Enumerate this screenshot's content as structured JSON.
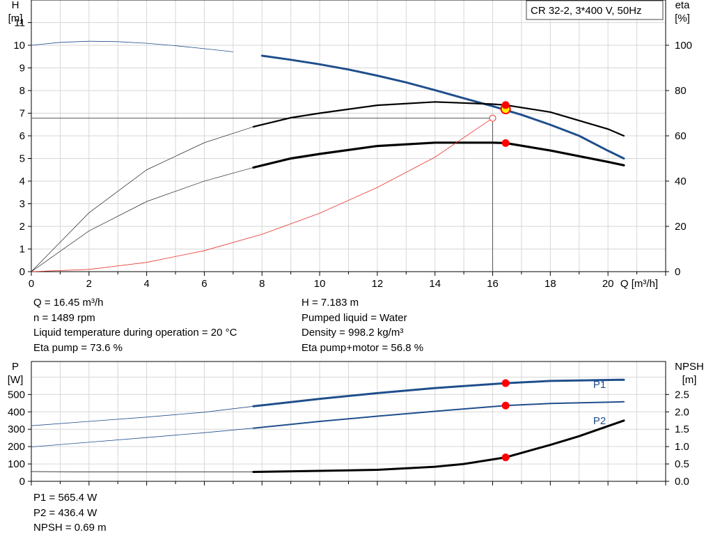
{
  "legend_title": "CR 32-2, 3*400 V, 50Hz",
  "colors": {
    "head": "#1f4e8c",
    "power": "#1f4e8c",
    "eta": "#000000",
    "npsh": "#000000",
    "system": "#e8332a",
    "marker": "#ff0000",
    "duty_fill": "#ffee00",
    "grid": "#d6d6d6"
  },
  "info_top_left": [
    "Q = 16.45 m³/h",
    "n = 1489 rpm",
    "Liquid temperature during operation = 20 °C",
    "Eta pump = 73.6 %"
  ],
  "info_top_right": [
    "H = 7.183 m",
    "Pumped liquid = Water",
    "Density = 998.2 kg/m³",
    "Eta pump+motor = 56.8 %"
  ],
  "info_bottom": [
    "P1 = 565.4 W",
    "P2 = 436.4 W",
    "NPSH = 0.69 m"
  ],
  "chart_data": [
    {
      "type": "line",
      "xlabel": "Q [m³/h]",
      "ylabel_left": [
        "H",
        "[m]"
      ],
      "ylabel_right": [
        "eta",
        "[%]"
      ],
      "xlim": [
        0,
        22
      ],
      "ylim": [
        0,
        12
      ],
      "ylim_right": [
        0,
        120
      ],
      "x_ticks": [
        0,
        2,
        4,
        6,
        8,
        10,
        12,
        14,
        16,
        18,
        20
      ],
      "y_ticks": [
        0,
        1,
        2,
        3,
        4,
        5,
        6,
        7,
        8,
        9,
        10,
        11
      ],
      "y_ticks_right": [
        0,
        20,
        40,
        60,
        80,
        100
      ],
      "grid": true,
      "duty_point": {
        "q": 16.45,
        "h": 7.183
      },
      "series": [
        {
          "key": "head",
          "axis": "left",
          "thin_until": 7.7,
          "x": [
            0,
            1,
            2,
            3,
            4,
            5,
            6,
            7,
            8,
            9,
            10,
            11,
            12,
            13,
            14,
            15,
            16,
            17,
            18,
            19,
            20,
            20.55
          ],
          "y": [
            10.0,
            10.13,
            10.18,
            10.16,
            10.09,
            9.98,
            9.85,
            9.71,
            9.54,
            9.36,
            9.16,
            8.93,
            8.66,
            8.36,
            8.02,
            7.66,
            7.31,
            6.93,
            6.49,
            6.0,
            5.34,
            5.0
          ]
        },
        {
          "key": "eta1",
          "axis": "right",
          "thin_until": 7.7,
          "x": [
            0,
            2,
            4,
            6,
            7.7,
            9,
            10,
            12,
            14,
            16,
            16.45,
            18,
            20,
            20.55
          ],
          "y": [
            0,
            26,
            45,
            57,
            64,
            68,
            70,
            73.5,
            75,
            74,
            73.6,
            70.5,
            63,
            60
          ]
        },
        {
          "key": "eta2",
          "axis": "right",
          "thin_until": 7.7,
          "x": [
            0,
            2,
            4,
            6,
            7.7,
            9,
            10,
            12,
            14,
            16,
            16.45,
            18,
            20,
            20.55
          ],
          "y": [
            0,
            18,
            31,
            40,
            46,
            50,
            52,
            55.5,
            57,
            57,
            56.8,
            53.5,
            48.5,
            47
          ]
        },
        {
          "key": "system",
          "axis": "left",
          "x": [
            0,
            2,
            4,
            6,
            8,
            10,
            12,
            14,
            16.0
          ],
          "y": [
            0,
            0.1,
            0.41,
            0.93,
            1.65,
            2.58,
            3.72,
            5.06,
            6.78
          ]
        }
      ],
      "markers": [
        {
          "x": 16.45,
          "y": 7.183,
          "axis": "left"
        },
        {
          "x": 16.45,
          "y": 73.6,
          "axis": "right"
        },
        {
          "x": 16.45,
          "y": 56.8,
          "axis": "right"
        }
      ]
    },
    {
      "type": "line",
      "ylabel_left": [
        "P",
        "[W]"
      ],
      "ylabel_right": [
        "NPSH",
        "[m]"
      ],
      "xlim": [
        0,
        22
      ],
      "ylim": [
        0,
        690
      ],
      "ylim_right": [
        0,
        3.45
      ],
      "y_ticks": [
        0,
        100,
        200,
        300,
        400,
        500
      ],
      "y_ticks_right": [
        "0.0",
        "0.5",
        "1.0",
        "1.5",
        "2.0",
        "2.5"
      ],
      "grid": true,
      "series": [
        {
          "key": "P1",
          "name": "P1",
          "axis": "left",
          "thin_until": 7.7,
          "x": [
            0,
            2,
            4,
            6,
            7.7,
            10,
            12,
            14,
            16.45,
            18,
            20.55
          ],
          "y": [
            320,
            345,
            370,
            398,
            432,
            475,
            508,
            537,
            565.4,
            578,
            585
          ]
        },
        {
          "key": "P2",
          "name": "P2",
          "axis": "left",
          "thin_until": 7.7,
          "x": [
            0,
            2,
            4,
            6,
            7.7,
            10,
            12,
            14,
            16.45,
            18,
            20.55
          ],
          "y": [
            198,
            225,
            252,
            280,
            306,
            345,
            375,
            403,
            436.4,
            448,
            458
          ]
        },
        {
          "key": "npsh",
          "axis": "right",
          "thin_until": 7.7,
          "x": [
            0,
            2,
            4,
            6,
            7.7,
            10,
            12,
            14,
            15,
            16.45,
            18,
            19,
            20.55
          ],
          "y": [
            0.28,
            0.27,
            0.27,
            0.27,
            0.27,
            0.3,
            0.33,
            0.42,
            0.5,
            0.69,
            1.05,
            1.3,
            1.75
          ]
        }
      ],
      "markers": [
        {
          "x": 16.45,
          "y": 565.4,
          "axis": "left"
        },
        {
          "x": 16.45,
          "y": 436.4,
          "axis": "left"
        },
        {
          "x": 16.45,
          "y": 0.69,
          "axis": "right"
        }
      ]
    }
  ]
}
